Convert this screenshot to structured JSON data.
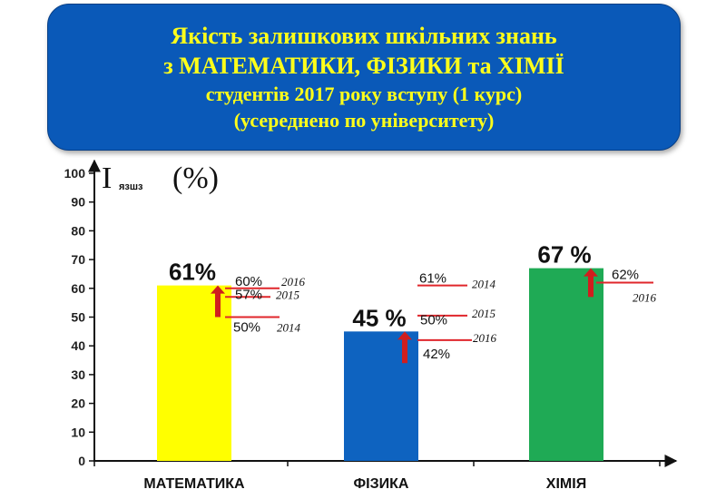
{
  "header": {
    "line1": "Якість залишкових шкільних знань",
    "line2": "з МАТЕМАТИКИ, ФІЗИКИ та ХІМІЇ",
    "line3": "студентів 2017 року вступу (1 курс)",
    "line4": "(усереднено по університету)"
  },
  "colors": {
    "banner_bg": "#0a59b8",
    "banner_text": "#ffff1a",
    "marker_line": "#e0262b",
    "arrow": "#d01e1e"
  },
  "chart_data": {
    "type": "bar",
    "ylabel_main": "I",
    "ylabel_sub": "язшз",
    "ylabel_unit": "(%)",
    "ylim": [
      0,
      100
    ],
    "yticks": [
      "0",
      "10",
      "20",
      "30",
      "40",
      "50",
      "60",
      "70",
      "80",
      "90",
      "100"
    ],
    "grid": false,
    "categories": [
      "МАТЕМАТИКА",
      "ФІЗИКА",
      "ХІМІЯ"
    ],
    "values": [
      61,
      45,
      67
    ],
    "value_labels": [
      "61%",
      "45 %",
      "67 %"
    ],
    "bar_colors": [
      "#ffff00",
      "#0e63c0",
      "#1faa55"
    ],
    "reference_marks": [
      [
        {
          "year": "2016",
          "value": 60,
          "label": "60%"
        },
        {
          "year": "2015",
          "value": 57,
          "label": "57%"
        },
        {
          "year": "2014",
          "value": 50,
          "label": "50%"
        }
      ],
      [
        {
          "year": "2014",
          "value": 61,
          "label": "61%"
        },
        {
          "year": "2015",
          "value": 50.5,
          "label": ""
        },
        {
          "year": "2016",
          "value": 42,
          "label": "42%"
        },
        {
          "year": "",
          "value": 50,
          "label": "50%"
        }
      ],
      [
        {
          "year": "2016",
          "value": 62,
          "label": "62%"
        }
      ]
    ]
  }
}
